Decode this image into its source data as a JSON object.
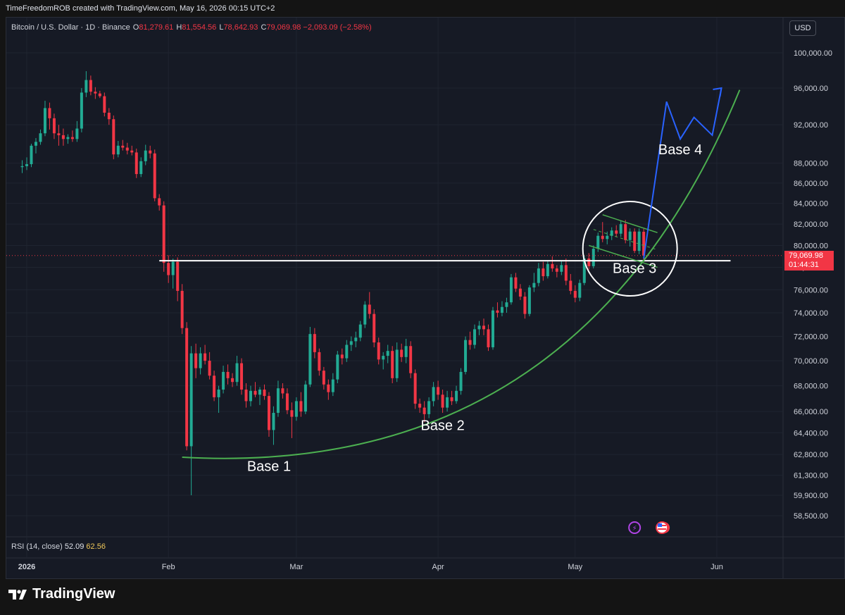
{
  "header": {
    "credit": "TimeFreedomROB created with TradingView.com, May 16, 2026 00:15 UTC+2"
  },
  "legend": {
    "symbol": "Bitcoin / U.S. Dollar · 1D · Binance",
    "o_key": "O",
    "o_val": "81,279.61",
    "h_key": "H",
    "h_val": "81,554.56",
    "l_key": "L",
    "l_val": "78,642.93",
    "c_key": "C",
    "c_val": "79,069.98",
    "change": "−2,093.09 (−2.58%)"
  },
  "currency": "USD",
  "last_price": {
    "price": "79,069.98",
    "countdown": "01:44:31"
  },
  "rsi": {
    "label": "RSI (14, close)",
    "value1": "52.09",
    "value2": "62.56"
  },
  "brand": {
    "name": "TradingView"
  },
  "colors": {
    "up": "#22ab94",
    "down": "#f23645",
    "grid": "#1f2430",
    "support_line": "#ffffff",
    "curve": "#4caf50",
    "projection": "#2962ff"
  },
  "chart_data": {
    "type": "candlestick",
    "symbol": "BTCUSD",
    "timeframe": "1D",
    "y_ticks": [
      "100,000.00",
      "96,000.00",
      "92,000.00",
      "88,000.00",
      "86,000.00",
      "84,000.00",
      "82,000.00",
      "80,000.00",
      "78,000.00",
      "76,000.00",
      "74,000.00",
      "72,000.00",
      "70,000.00",
      "68,000.00",
      "66,000.00",
      "64,400.00",
      "62,800.00",
      "61,300.00",
      "59,900.00",
      "58,500.00"
    ],
    "x_ticks": [
      {
        "label": "2026",
        "date": "2026-01-01"
      },
      {
        "label": "Feb",
        "date": "2026-02-01"
      },
      {
        "label": "Mar",
        "date": "2026-03-01"
      },
      {
        "label": "Apr",
        "date": "2026-04-01"
      },
      {
        "label": "May",
        "date": "2026-05-01"
      },
      {
        "label": "Jun",
        "date": "2026-06-01"
      }
    ],
    "support_level": 78600,
    "annotations": [
      {
        "text": "Base 1",
        "date": "2026-02-23",
        "price": 61600
      },
      {
        "text": "Base 2",
        "date": "2026-04-02",
        "price": 64600
      },
      {
        "text": "Base 3",
        "date": "2026-05-14",
        "price": 77500
      },
      {
        "text": "Base 4",
        "date": "2026-05-24",
        "price": 88900
      }
    ],
    "projection": [
      {
        "date": "2026-05-16",
        "price": 78800
      },
      {
        "date": "2026-05-21",
        "price": 94500
      },
      {
        "date": "2026-05-24",
        "price": 90500
      },
      {
        "date": "2026-05-27",
        "price": 92800
      },
      {
        "date": "2026-05-31",
        "price": 90900
      },
      {
        "date": "2026-06-02",
        "price": 96000
      }
    ],
    "candles": [
      {
        "date": "2025-12-31",
        "o": 87600,
        "h": 88300,
        "l": 87000,
        "c": 87700
      },
      {
        "date": "2026-01-01",
        "o": 87700,
        "h": 88600,
        "l": 87300,
        "c": 87900
      },
      {
        "date": "2026-01-02",
        "o": 87900,
        "h": 90000,
        "l": 87600,
        "c": 89800
      },
      {
        "date": "2026-01-03",
        "o": 89800,
        "h": 90600,
        "l": 89000,
        "c": 90200
      },
      {
        "date": "2026-01-04",
        "o": 90200,
        "h": 91500,
        "l": 89900,
        "c": 91100
      },
      {
        "date": "2026-01-05",
        "o": 91100,
        "h": 94600,
        "l": 90800,
        "c": 93800
      },
      {
        "date": "2026-01-06",
        "o": 93800,
        "h": 94400,
        "l": 91500,
        "c": 92700
      },
      {
        "date": "2026-01-07",
        "o": 92700,
        "h": 93200,
        "l": 90500,
        "c": 91100
      },
      {
        "date": "2026-01-08",
        "o": 91100,
        "h": 92000,
        "l": 89800,
        "c": 90900
      },
      {
        "date": "2026-01-09",
        "o": 90900,
        "h": 91600,
        "l": 89800,
        "c": 90500
      },
      {
        "date": "2026-01-10",
        "o": 90500,
        "h": 91000,
        "l": 90000,
        "c": 90700
      },
      {
        "date": "2026-01-11",
        "o": 90700,
        "h": 91400,
        "l": 90200,
        "c": 90500
      },
      {
        "date": "2026-01-12",
        "o": 90500,
        "h": 92400,
        "l": 90200,
        "c": 91600
      },
      {
        "date": "2026-01-13",
        "o": 91600,
        "h": 96000,
        "l": 91200,
        "c": 95500
      },
      {
        "date": "2026-01-14",
        "o": 95500,
        "h": 97900,
        "l": 95000,
        "c": 96900
      },
      {
        "date": "2026-01-15",
        "o": 96900,
        "h": 97400,
        "l": 95200,
        "c": 95600
      },
      {
        "date": "2026-01-16",
        "o": 95600,
        "h": 96100,
        "l": 94800,
        "c": 95400
      },
      {
        "date": "2026-01-17",
        "o": 95400,
        "h": 95700,
        "l": 94900,
        "c": 95100
      },
      {
        "date": "2026-01-18",
        "o": 95100,
        "h": 95500,
        "l": 92900,
        "c": 93300
      },
      {
        "date": "2026-01-19",
        "o": 93300,
        "h": 93800,
        "l": 92000,
        "c": 92600
      },
      {
        "date": "2026-01-20",
        "o": 92600,
        "h": 93000,
        "l": 88400,
        "c": 88900
      },
      {
        "date": "2026-01-21",
        "o": 88900,
        "h": 90300,
        "l": 88600,
        "c": 89800
      },
      {
        "date": "2026-01-22",
        "o": 89800,
        "h": 90400,
        "l": 89300,
        "c": 89600
      },
      {
        "date": "2026-01-23",
        "o": 89600,
        "h": 90100,
        "l": 88900,
        "c": 89300
      },
      {
        "date": "2026-01-24",
        "o": 89300,
        "h": 89800,
        "l": 88800,
        "c": 89100
      },
      {
        "date": "2026-01-25",
        "o": 89100,
        "h": 89500,
        "l": 86500,
        "c": 86900
      },
      {
        "date": "2026-01-26",
        "o": 86900,
        "h": 88600,
        "l": 86600,
        "c": 88200
      },
      {
        "date": "2026-01-27",
        "o": 88200,
        "h": 89900,
        "l": 87800,
        "c": 89300
      },
      {
        "date": "2026-01-28",
        "o": 89300,
        "h": 89800,
        "l": 88500,
        "c": 89000
      },
      {
        "date": "2026-01-29",
        "o": 89000,
        "h": 89400,
        "l": 84200,
        "c": 84500
      },
      {
        "date": "2026-01-30",
        "o": 84500,
        "h": 84900,
        "l": 83300,
        "c": 83800
      },
      {
        "date": "2026-01-31",
        "o": 83800,
        "h": 84200,
        "l": 77600,
        "c": 78400
      },
      {
        "date": "2026-02-01",
        "o": 78400,
        "h": 79100,
        "l": 76600,
        "c": 77300
      },
      {
        "date": "2026-02-02",
        "o": 77300,
        "h": 78800,
        "l": 76100,
        "c": 78500
      },
      {
        "date": "2026-02-03",
        "o": 78500,
        "h": 78900,
        "l": 75000,
        "c": 75900
      },
      {
        "date": "2026-02-04",
        "o": 75900,
        "h": 76500,
        "l": 72200,
        "c": 72700
      },
      {
        "date": "2026-02-05",
        "o": 72700,
        "h": 73200,
        "l": 63100,
        "c": 63400
      },
      {
        "date": "2026-02-06",
        "o": 63400,
        "h": 71200,
        "l": 59900,
        "c": 70600
      },
      {
        "date": "2026-02-07",
        "o": 70600,
        "h": 71400,
        "l": 68600,
        "c": 69400
      },
      {
        "date": "2026-02-08",
        "o": 69400,
        "h": 71100,
        "l": 68900,
        "c": 70600
      },
      {
        "date": "2026-02-09",
        "o": 70600,
        "h": 71300,
        "l": 69700,
        "c": 70000
      },
      {
        "date": "2026-02-10",
        "o": 70000,
        "h": 70700,
        "l": 68500,
        "c": 68800
      },
      {
        "date": "2026-02-11",
        "o": 68800,
        "h": 69200,
        "l": 66800,
        "c": 67100
      },
      {
        "date": "2026-02-12",
        "o": 67100,
        "h": 68000,
        "l": 65900,
        "c": 67700
      },
      {
        "date": "2026-02-13",
        "o": 67700,
        "h": 69600,
        "l": 67400,
        "c": 69100
      },
      {
        "date": "2026-02-14",
        "o": 69100,
        "h": 69700,
        "l": 68100,
        "c": 68600
      },
      {
        "date": "2026-02-15",
        "o": 68600,
        "h": 69000,
        "l": 67900,
        "c": 68300
      },
      {
        "date": "2026-02-16",
        "o": 68300,
        "h": 70400,
        "l": 68000,
        "c": 69800
      },
      {
        "date": "2026-02-17",
        "o": 69800,
        "h": 70200,
        "l": 67300,
        "c": 67700
      },
      {
        "date": "2026-02-18",
        "o": 67700,
        "h": 68200,
        "l": 66300,
        "c": 66800
      },
      {
        "date": "2026-02-19",
        "o": 66800,
        "h": 68000,
        "l": 66400,
        "c": 67600
      },
      {
        "date": "2026-02-20",
        "o": 67600,
        "h": 68300,
        "l": 67100,
        "c": 67300
      },
      {
        "date": "2026-02-21",
        "o": 67300,
        "h": 67900,
        "l": 66500,
        "c": 67700
      },
      {
        "date": "2026-02-22",
        "o": 67700,
        "h": 68100,
        "l": 66900,
        "c": 67200
      },
      {
        "date": "2026-02-23",
        "o": 67200,
        "h": 67500,
        "l": 64100,
        "c": 64600
      },
      {
        "date": "2026-02-24",
        "o": 64600,
        "h": 66400,
        "l": 63500,
        "c": 65900
      },
      {
        "date": "2026-02-25",
        "o": 65900,
        "h": 68400,
        "l": 65600,
        "c": 67800
      },
      {
        "date": "2026-02-26",
        "o": 67800,
        "h": 68200,
        "l": 67000,
        "c": 67400
      },
      {
        "date": "2026-02-27",
        "o": 67400,
        "h": 67800,
        "l": 65800,
        "c": 66100
      },
      {
        "date": "2026-02-28",
        "o": 66100,
        "h": 66700,
        "l": 64000,
        "c": 65600
      },
      {
        "date": "2026-03-01",
        "o": 65600,
        "h": 67100,
        "l": 65300,
        "c": 66800
      },
      {
        "date": "2026-03-02",
        "o": 66800,
        "h": 67500,
        "l": 65600,
        "c": 66000
      },
      {
        "date": "2026-03-03",
        "o": 66000,
        "h": 68400,
        "l": 65800,
        "c": 68100
      },
      {
        "date": "2026-03-04",
        "o": 68100,
        "h": 72800,
        "l": 67900,
        "c": 72200
      },
      {
        "date": "2026-03-05",
        "o": 72200,
        "h": 72700,
        "l": 70200,
        "c": 70700
      },
      {
        "date": "2026-03-06",
        "o": 70700,
        "h": 71000,
        "l": 68800,
        "c": 69200
      },
      {
        "date": "2026-03-07",
        "o": 69200,
        "h": 69500,
        "l": 67700,
        "c": 68100
      },
      {
        "date": "2026-03-08",
        "o": 68100,
        "h": 68500,
        "l": 66900,
        "c": 67500
      },
      {
        "date": "2026-03-09",
        "o": 67500,
        "h": 69000,
        "l": 67200,
        "c": 68500
      },
      {
        "date": "2026-03-10",
        "o": 68500,
        "h": 70800,
        "l": 68200,
        "c": 70500
      },
      {
        "date": "2026-03-11",
        "o": 70500,
        "h": 71000,
        "l": 69700,
        "c": 70200
      },
      {
        "date": "2026-03-12",
        "o": 70200,
        "h": 71700,
        "l": 69900,
        "c": 71300
      },
      {
        "date": "2026-03-13",
        "o": 71300,
        "h": 72000,
        "l": 70800,
        "c": 71600
      },
      {
        "date": "2026-03-14",
        "o": 71600,
        "h": 72400,
        "l": 71100,
        "c": 71900
      },
      {
        "date": "2026-03-15",
        "o": 71900,
        "h": 73300,
        "l": 71600,
        "c": 73000
      },
      {
        "date": "2026-03-16",
        "o": 73000,
        "h": 75000,
        "l": 72700,
        "c": 74700
      },
      {
        "date": "2026-03-17",
        "o": 74700,
        "h": 75800,
        "l": 73500,
        "c": 73900
      },
      {
        "date": "2026-03-18",
        "o": 73900,
        "h": 74300,
        "l": 71100,
        "c": 71500
      },
      {
        "date": "2026-03-19",
        "o": 71500,
        "h": 71900,
        "l": 69700,
        "c": 70100
      },
      {
        "date": "2026-03-20",
        "o": 70100,
        "h": 70700,
        "l": 69300,
        "c": 70400
      },
      {
        "date": "2026-03-21",
        "o": 70400,
        "h": 71300,
        "l": 69800,
        "c": 70800
      },
      {
        "date": "2026-03-22",
        "o": 70800,
        "h": 71200,
        "l": 68200,
        "c": 68600
      },
      {
        "date": "2026-03-23",
        "o": 68600,
        "h": 71500,
        "l": 68300,
        "c": 70900
      },
      {
        "date": "2026-03-24",
        "o": 70900,
        "h": 71400,
        "l": 69900,
        "c": 70300
      },
      {
        "date": "2026-03-25",
        "o": 70300,
        "h": 71800,
        "l": 69800,
        "c": 71200
      },
      {
        "date": "2026-03-26",
        "o": 71200,
        "h": 71600,
        "l": 68600,
        "c": 69000
      },
      {
        "date": "2026-03-27",
        "o": 69000,
        "h": 69300,
        "l": 66200,
        "c": 66600
      },
      {
        "date": "2026-03-28",
        "o": 66600,
        "h": 67000,
        "l": 65900,
        "c": 66300
      },
      {
        "date": "2026-03-29",
        "o": 66300,
        "h": 66800,
        "l": 65200,
        "c": 65800
      },
      {
        "date": "2026-03-30",
        "o": 65800,
        "h": 67100,
        "l": 65500,
        "c": 66800
      },
      {
        "date": "2026-03-31",
        "o": 66800,
        "h": 68300,
        "l": 66400,
        "c": 67900
      },
      {
        "date": "2026-04-01",
        "o": 67900,
        "h": 68400,
        "l": 66900,
        "c": 67300
      },
      {
        "date": "2026-04-02",
        "o": 67300,
        "h": 67700,
        "l": 65900,
        "c": 66300
      },
      {
        "date": "2026-04-03",
        "o": 66300,
        "h": 67600,
        "l": 66000,
        "c": 67100
      },
      {
        "date": "2026-04-04",
        "o": 67100,
        "h": 67600,
        "l": 66500,
        "c": 66800
      },
      {
        "date": "2026-04-05",
        "o": 66800,
        "h": 68000,
        "l": 66600,
        "c": 67600
      },
      {
        "date": "2026-04-06",
        "o": 67600,
        "h": 69400,
        "l": 67300,
        "c": 69100
      },
      {
        "date": "2026-04-07",
        "o": 69100,
        "h": 72000,
        "l": 68900,
        "c": 71700
      },
      {
        "date": "2026-04-08",
        "o": 71700,
        "h": 72400,
        "l": 70900,
        "c": 71300
      },
      {
        "date": "2026-04-09",
        "o": 71300,
        "h": 73000,
        "l": 71000,
        "c": 72600
      },
      {
        "date": "2026-04-10",
        "o": 72600,
        "h": 73300,
        "l": 72100,
        "c": 72900
      },
      {
        "date": "2026-04-11",
        "o": 72900,
        "h": 73500,
        "l": 72100,
        "c": 72600
      },
      {
        "date": "2026-04-12",
        "o": 72600,
        "h": 73000,
        "l": 70800,
        "c": 71100
      },
      {
        "date": "2026-04-13",
        "o": 71100,
        "h": 74500,
        "l": 70900,
        "c": 74200
      },
      {
        "date": "2026-04-14",
        "o": 74200,
        "h": 74900,
        "l": 73600,
        "c": 74000
      },
      {
        "date": "2026-04-15",
        "o": 74000,
        "h": 75000,
        "l": 73700,
        "c": 74500
      },
      {
        "date": "2026-04-16",
        "o": 74500,
        "h": 75300,
        "l": 74000,
        "c": 74900
      },
      {
        "date": "2026-04-17",
        "o": 74900,
        "h": 77400,
        "l": 74700,
        "c": 77100
      },
      {
        "date": "2026-04-18",
        "o": 77100,
        "h": 77500,
        "l": 75800,
        "c": 76100
      },
      {
        "date": "2026-04-19",
        "o": 76100,
        "h": 76500,
        "l": 75100,
        "c": 75400
      },
      {
        "date": "2026-04-20",
        "o": 75400,
        "h": 75800,
        "l": 73500,
        "c": 73900
      },
      {
        "date": "2026-04-21",
        "o": 73900,
        "h": 76400,
        "l": 73700,
        "c": 76200
      },
      {
        "date": "2026-04-22",
        "o": 76200,
        "h": 77500,
        "l": 75800,
        "c": 76600
      },
      {
        "date": "2026-04-23",
        "o": 76600,
        "h": 78400,
        "l": 76300,
        "c": 77900
      },
      {
        "date": "2026-04-24",
        "o": 77900,
        "h": 78500,
        "l": 76800,
        "c": 77200
      },
      {
        "date": "2026-04-25",
        "o": 77200,
        "h": 78600,
        "l": 77000,
        "c": 78300
      },
      {
        "date": "2026-04-26",
        "o": 78300,
        "h": 79000,
        "l": 77600,
        "c": 77900
      },
      {
        "date": "2026-04-27",
        "o": 77900,
        "h": 78200,
        "l": 77100,
        "c": 77600
      },
      {
        "date": "2026-04-28",
        "o": 77600,
        "h": 78600,
        "l": 77300,
        "c": 78200
      },
      {
        "date": "2026-04-29",
        "o": 78200,
        "h": 78800,
        "l": 76400,
        "c": 76800
      },
      {
        "date": "2026-04-30",
        "o": 76800,
        "h": 77400,
        "l": 75600,
        "c": 75900
      },
      {
        "date": "2026-05-01",
        "o": 75900,
        "h": 76400,
        "l": 74900,
        "c": 75300
      },
      {
        "date": "2026-05-02",
        "o": 75300,
        "h": 76900,
        "l": 75000,
        "c": 76600
      },
      {
        "date": "2026-05-03",
        "o": 76600,
        "h": 79100,
        "l": 76400,
        "c": 78800
      },
      {
        "date": "2026-05-04",
        "o": 78800,
        "h": 79300,
        "l": 77800,
        "c": 78100
      },
      {
        "date": "2026-05-05",
        "o": 78100,
        "h": 80000,
        "l": 77900,
        "c": 79700
      },
      {
        "date": "2026-05-06",
        "o": 79700,
        "h": 81200,
        "l": 79400,
        "c": 80900
      },
      {
        "date": "2026-05-07",
        "o": 80900,
        "h": 82200,
        "l": 80300,
        "c": 80600
      },
      {
        "date": "2026-05-08",
        "o": 80600,
        "h": 81300,
        "l": 80100,
        "c": 80900
      },
      {
        "date": "2026-05-09",
        "o": 80900,
        "h": 81700,
        "l": 80500,
        "c": 81400
      },
      {
        "date": "2026-05-10",
        "o": 81400,
        "h": 81900,
        "l": 80800,
        "c": 81100
      },
      {
        "date": "2026-05-11",
        "o": 81100,
        "h": 82300,
        "l": 80800,
        "c": 82000
      },
      {
        "date": "2026-05-12",
        "o": 82000,
        "h": 82400,
        "l": 80200,
        "c": 80500
      },
      {
        "date": "2026-05-13",
        "o": 80500,
        "h": 81600,
        "l": 79900,
        "c": 81300
      },
      {
        "date": "2026-05-14",
        "o": 81300,
        "h": 81600,
        "l": 79300,
        "c": 79500
      },
      {
        "date": "2026-05-15",
        "o": 79500,
        "h": 81600,
        "l": 79200,
        "c": 81300
      },
      {
        "date": "2026-05-16",
        "o": 81280,
        "h": 81555,
        "l": 78643,
        "c": 79070
      }
    ]
  }
}
